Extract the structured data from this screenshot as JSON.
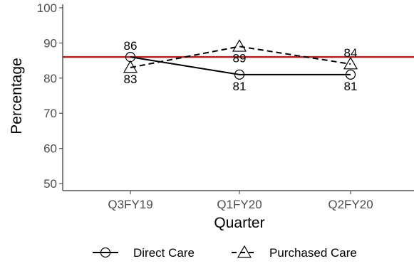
{
  "chart_data": {
    "type": "line",
    "xlabel": "Quarter",
    "ylabel": "Percentage",
    "categories": [
      "Q3FY19",
      "Q1FY20",
      "Q2FY20"
    ],
    "ylim": [
      48,
      101
    ],
    "yticks": [
      50,
      60,
      70,
      80,
      90,
      100
    ],
    "grid": false,
    "legend_position": "bottom",
    "reference_line": {
      "value": 86,
      "color": "#b22222"
    },
    "series": [
      {
        "name": "Direct Care",
        "values": [
          86,
          81,
          81
        ],
        "labels": [
          "86",
          "81",
          "81"
        ],
        "label_positions": [
          "above",
          "below",
          "below"
        ],
        "marker": "circle",
        "line_style": "solid",
        "color": "#000000"
      },
      {
        "name": "Purchased Care",
        "values": [
          83,
          89,
          84
        ],
        "labels": [
          "83",
          "89",
          "84"
        ],
        "label_positions": [
          "below",
          "below",
          "above"
        ],
        "marker": "triangle",
        "line_style": "dashed",
        "color": "#000000"
      }
    ]
  }
}
